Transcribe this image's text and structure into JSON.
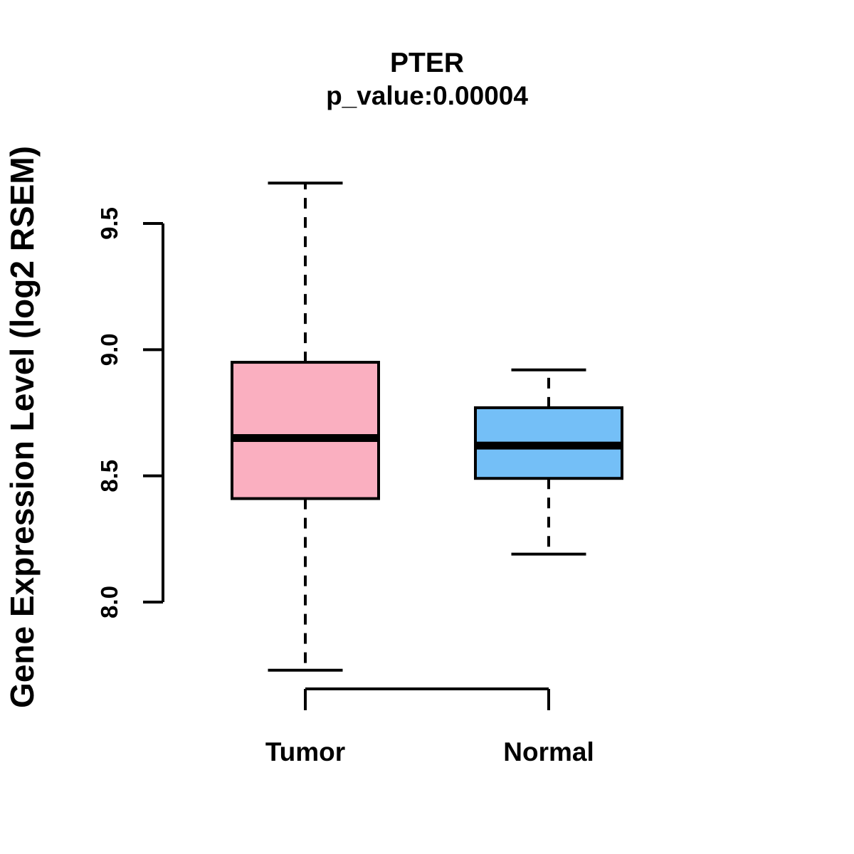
{
  "chart_data": {
    "type": "boxplot",
    "title": "PTER",
    "subtitle": "p_value:0.00004",
    "p_value": 4e-05,
    "gene": "PTER",
    "ylabel": "Gene Expression Level (log2 RSEM)",
    "yticks": {
      "values": [
        8.0,
        8.5,
        9.0,
        9.5
      ],
      "labels": [
        "8.0",
        "8.5",
        "9.0",
        "9.5"
      ]
    },
    "ytick_range": [
      8.0,
      9.5
    ],
    "grid": false,
    "legend": "none",
    "categories": [
      "Tumor",
      "Normal"
    ],
    "groups": [
      {
        "label": "Tumor",
        "color": "#FAAFC0",
        "whisker_low": 7.73,
        "q1": 8.41,
        "median": 8.65,
        "q3": 8.95,
        "whisker_high": 9.66
      },
      {
        "label": "Normal",
        "color": "#74BFF7",
        "whisker_low": 8.19,
        "q1": 8.49,
        "median": 8.62,
        "q3": 8.77,
        "whisker_high": 8.92
      }
    ],
    "box_border_color": "#000000",
    "median_color": "#000000"
  }
}
